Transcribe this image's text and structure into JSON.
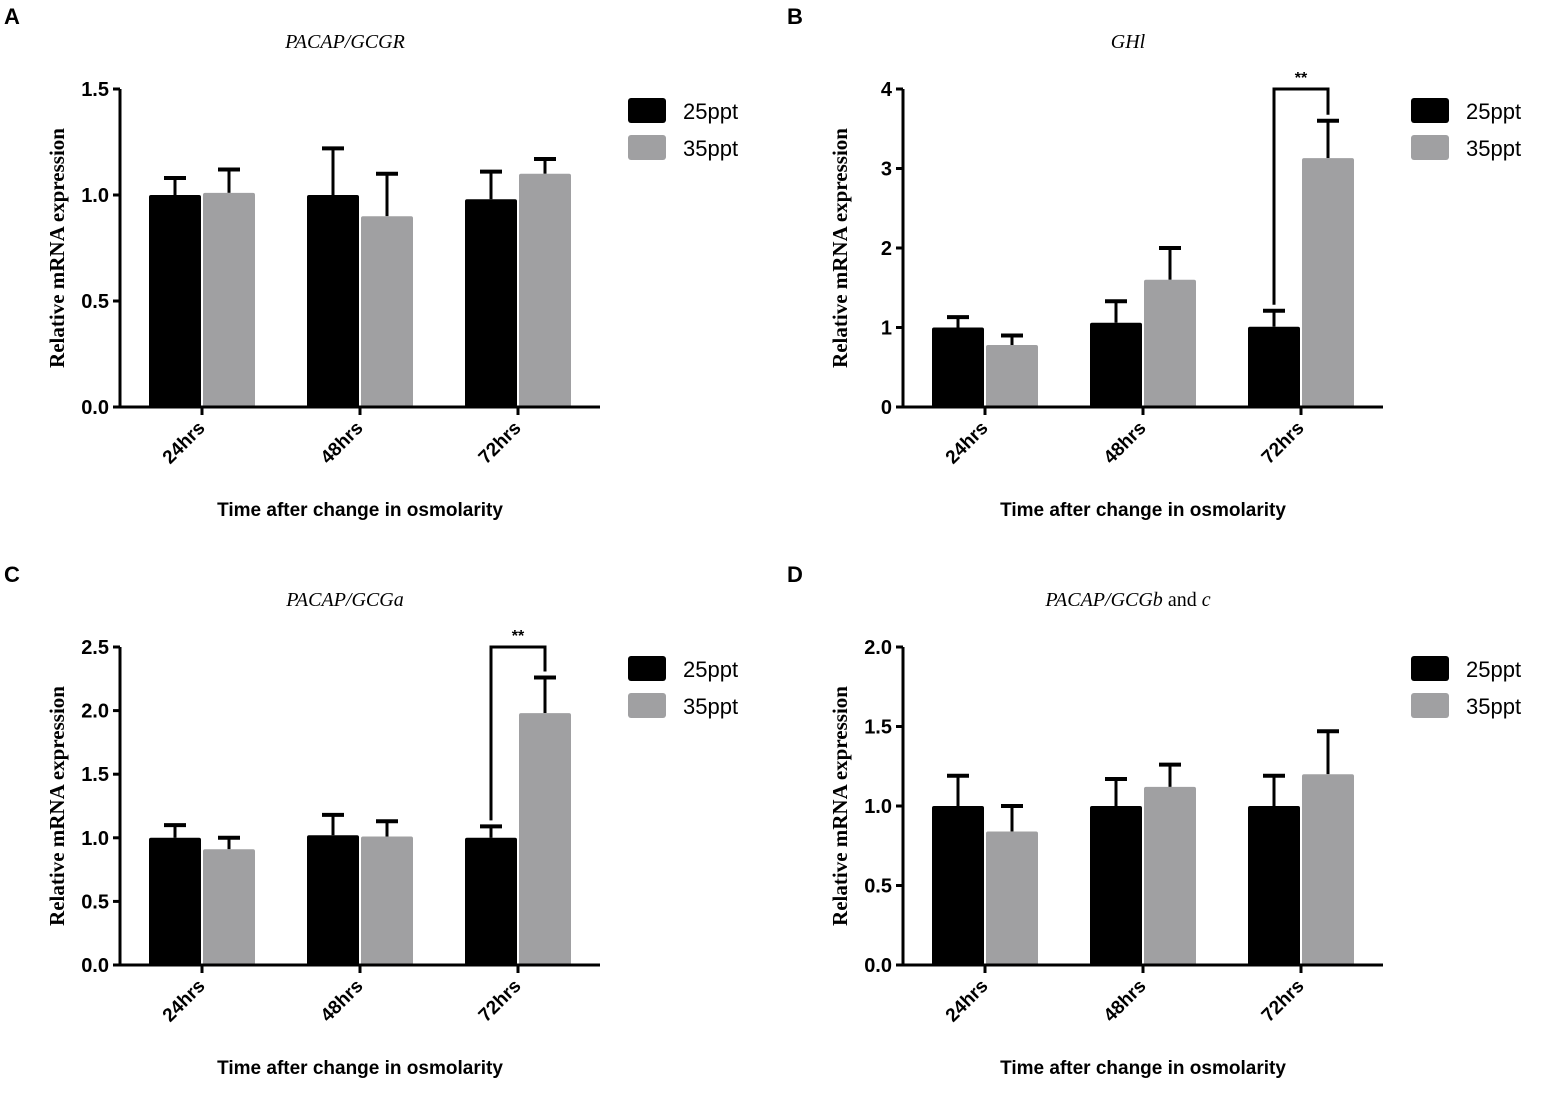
{
  "chart_data": [
    {
      "type": "bar",
      "panel_label": "A",
      "title": "PACAP/GCGR",
      "xlabel": "Time after change in osmolarity",
      "ylabel": "Relative mRNA expression",
      "categories": [
        "24hrs",
        "48hrs",
        "72hrs"
      ],
      "ylim": [
        0,
        1.5
      ],
      "yticks": [
        "0.0",
        "0.5",
        "1.0",
        "1.5"
      ],
      "ytick_values": [
        0,
        0.5,
        1.0,
        1.5
      ],
      "series": [
        {
          "name": "25ppt",
          "color": "#000000",
          "values": [
            1.0,
            1.0,
            0.98
          ],
          "error_top": [
            1.08,
            1.22,
            1.11
          ]
        },
        {
          "name": "35ppt",
          "color": "#a0a0a2",
          "values": [
            1.01,
            0.9,
            1.1
          ],
          "error_top": [
            1.12,
            1.1,
            1.17
          ]
        }
      ],
      "annotations": []
    },
    {
      "type": "bar",
      "panel_label": "B",
      "title": "GHl",
      "xlabel": "Time after change in osmolarity",
      "ylabel": "Relative mRNA expression",
      "categories": [
        "24hrs",
        "48hrs",
        "72hrs"
      ],
      "ylim": [
        0,
        4
      ],
      "yticks": [
        "0",
        "1",
        "2",
        "3",
        "4"
      ],
      "ytick_values": [
        0,
        1,
        2,
        3,
        4
      ],
      "series": [
        {
          "name": "25ppt",
          "color": "#000000",
          "values": [
            1.0,
            1.06,
            1.01
          ],
          "error_top": [
            1.13,
            1.33,
            1.21
          ]
        },
        {
          "name": "35ppt",
          "color": "#a0a0a2",
          "values": [
            0.78,
            1.6,
            3.13
          ],
          "error_top": [
            0.9,
            2.0,
            3.6
          ]
        }
      ],
      "annotations": [
        {
          "text": "**",
          "category": "72hrs",
          "bracket_y": 4.0
        }
      ]
    },
    {
      "type": "bar",
      "panel_label": "C",
      "title": "PACAP/GCGa",
      "xlabel": "Time after change in osmolarity",
      "ylabel": "Relative mRNA expression",
      "categories": [
        "24hrs",
        "48hrs",
        "72hrs"
      ],
      "ylim": [
        0,
        2.5
      ],
      "yticks": [
        "0.0",
        "0.5",
        "1.0",
        "1.5",
        "2.0",
        "2.5"
      ],
      "ytick_values": [
        0,
        0.5,
        1.0,
        1.5,
        2.0,
        2.5
      ],
      "series": [
        {
          "name": "25ppt",
          "color": "#000000",
          "values": [
            1.0,
            1.02,
            1.0
          ],
          "error_top": [
            1.1,
            1.18,
            1.09
          ]
        },
        {
          "name": "35ppt",
          "color": "#a0a0a2",
          "values": [
            0.91,
            1.01,
            1.98
          ],
          "error_top": [
            1.0,
            1.13,
            2.26
          ]
        }
      ],
      "annotations": [
        {
          "text": "**",
          "category": "72hrs",
          "bracket_y": 2.5
        }
      ]
    },
    {
      "type": "bar",
      "panel_label": "D",
      "title": "PACAP/GCGb",
      "title_suffix": " and ",
      "title_end": "c",
      "xlabel": "Time after change in osmolarity",
      "ylabel": "Relative mRNA expression",
      "categories": [
        "24hrs",
        "48hrs",
        "72hrs"
      ],
      "ylim": [
        0,
        2.0
      ],
      "yticks": [
        "0.0",
        "0.5",
        "1.0",
        "1.5",
        "2.0"
      ],
      "ytick_values": [
        0,
        0.5,
        1.0,
        1.5,
        2.0
      ],
      "series": [
        {
          "name": "25ppt",
          "color": "#000000",
          "values": [
            1.0,
            1.0,
            1.0
          ],
          "error_top": [
            1.19,
            1.17,
            1.19
          ]
        },
        {
          "name": "35ppt",
          "color": "#a0a0a2",
          "values": [
            0.84,
            1.12,
            1.2
          ],
          "error_top": [
            1.0,
            1.26,
            1.47
          ]
        }
      ],
      "annotations": []
    }
  ]
}
